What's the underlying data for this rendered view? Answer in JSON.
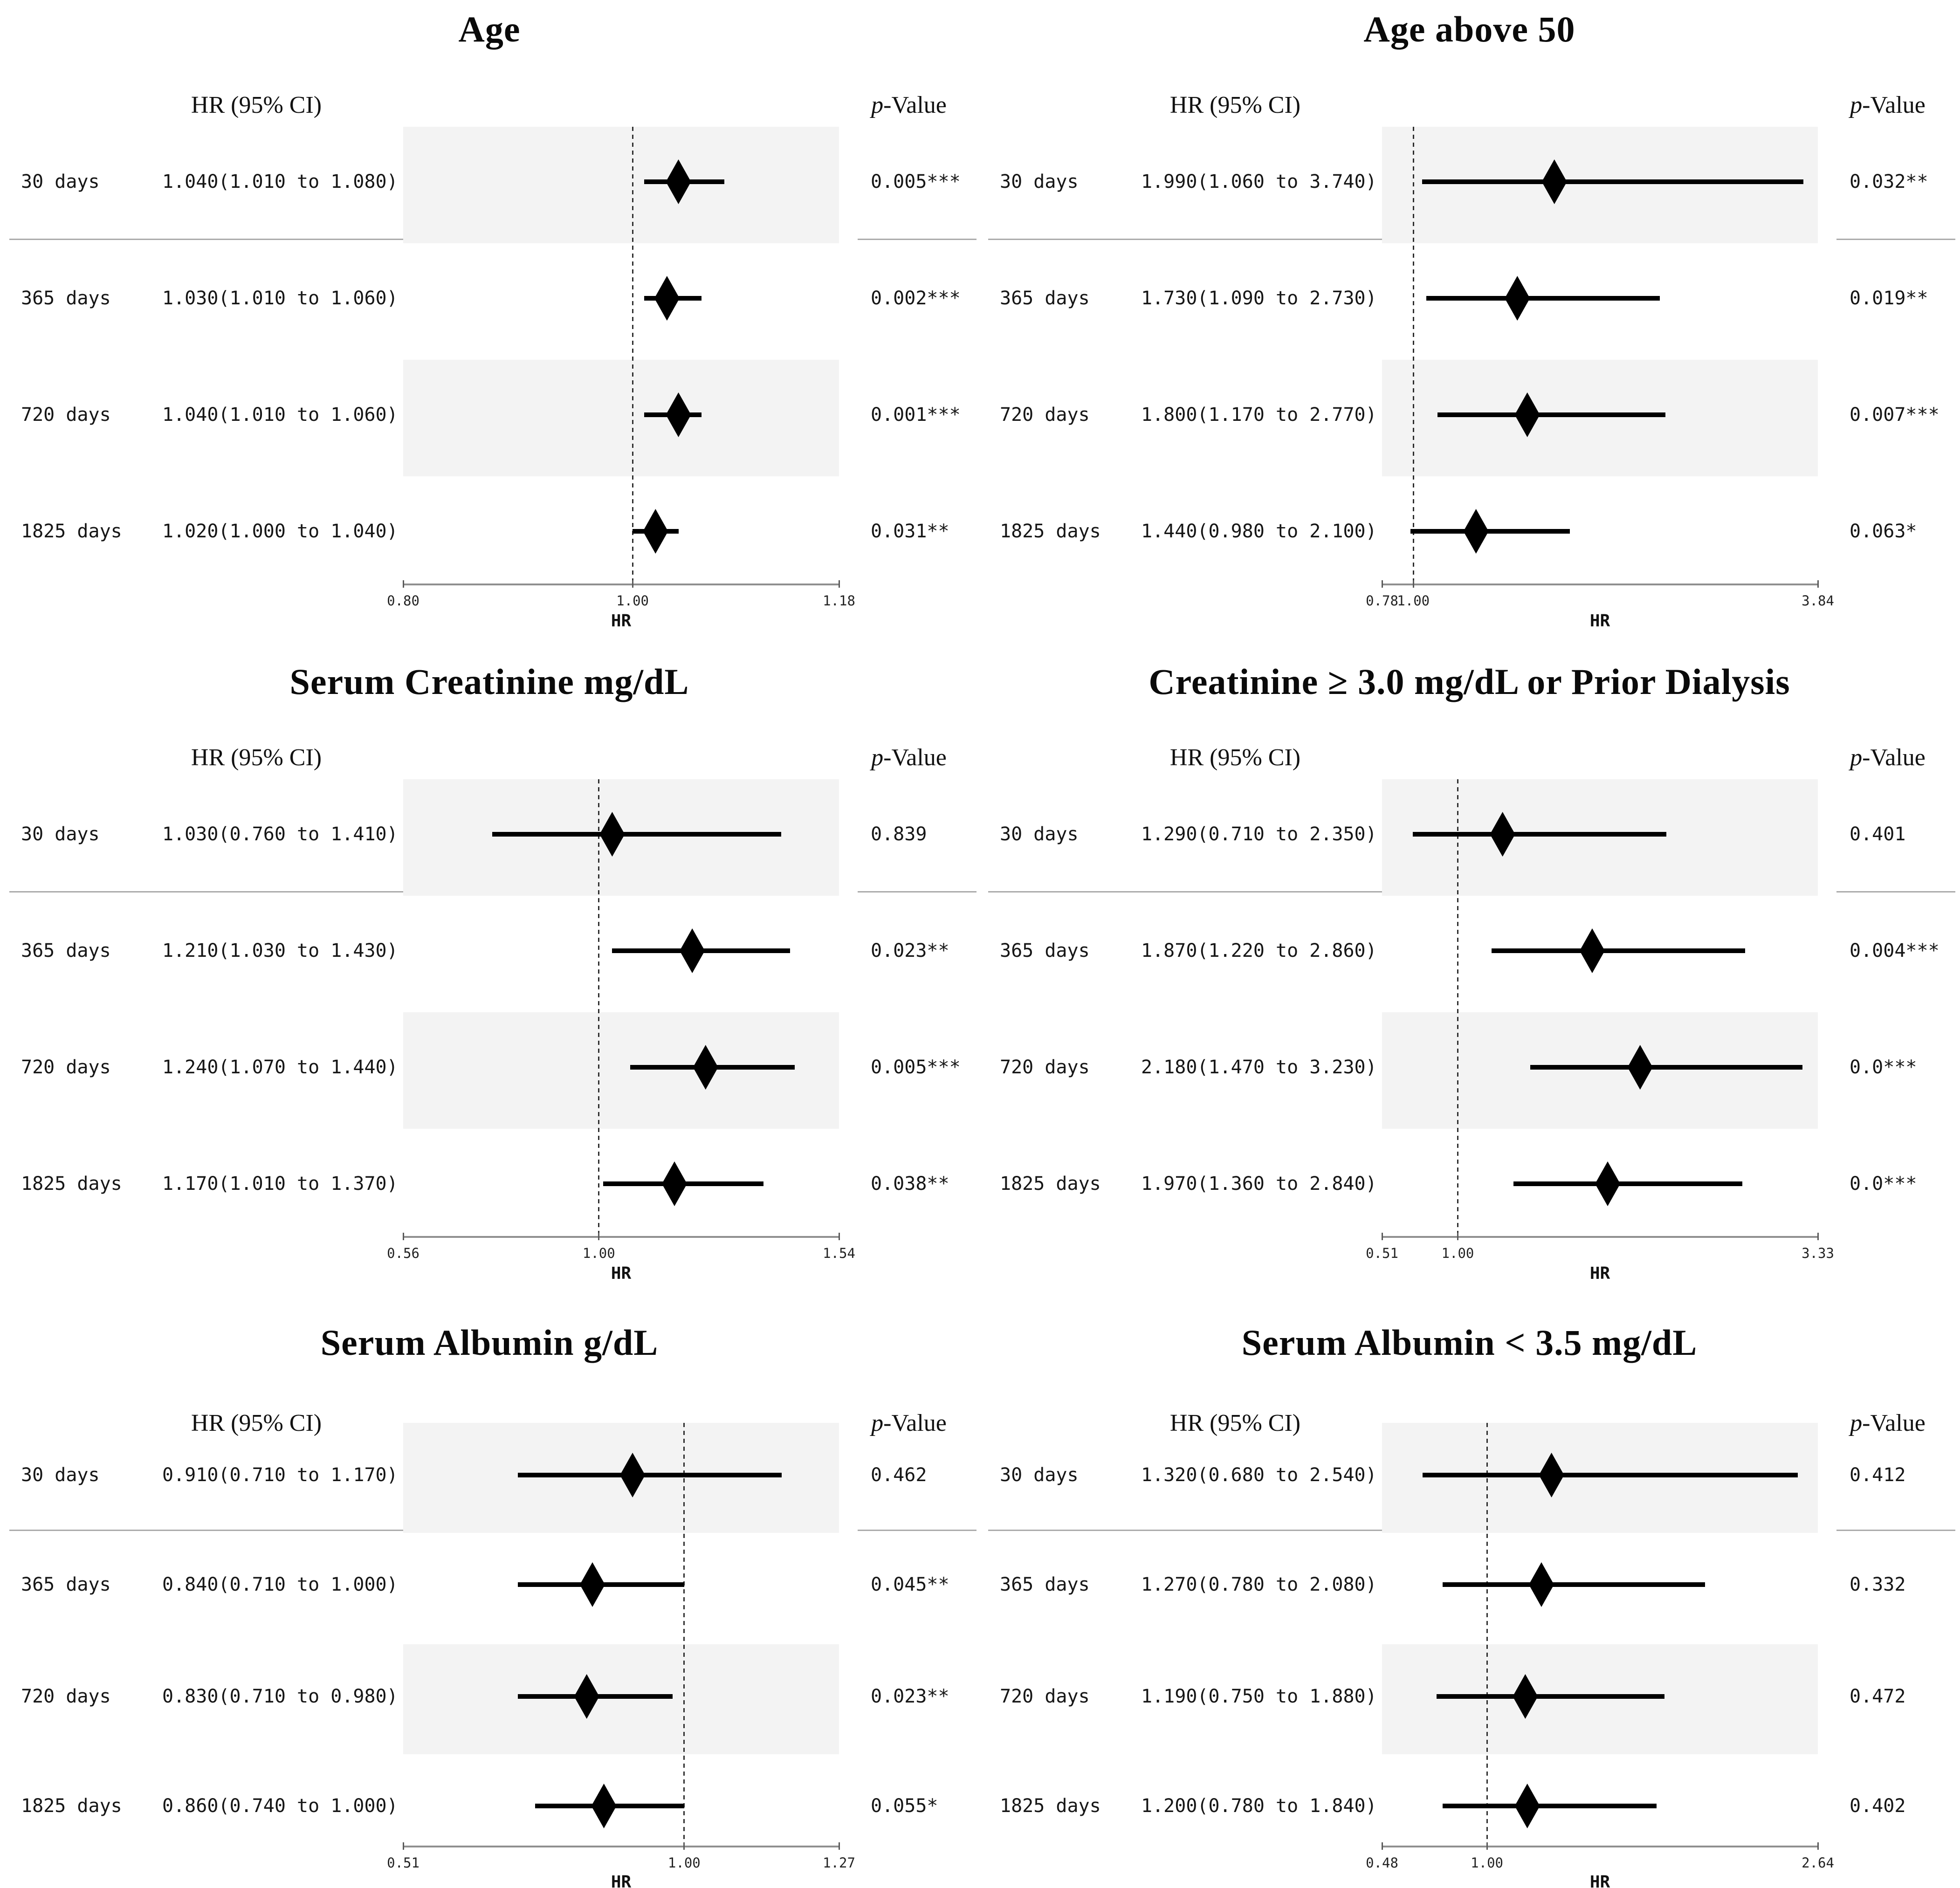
{
  "figure_title": "",
  "axis_label": "HR",
  "colors": {
    "background": "#ffffff",
    "band": "#f3f3f3",
    "divider": "#ababab",
    "axis": "#8f8f8f",
    "marker": "#000000",
    "reference_line": "#2e2e2e",
    "text": "#111111"
  },
  "chart_data": [
    {
      "type": "forest",
      "title": "Age",
      "col_header_left": "HR (95% CI)",
      "col_header_right": "p-Value",
      "xlabel": "HR",
      "xlim": [
        0.8,
        1.18
      ],
      "ticks": [
        {
          "value": 0.8,
          "label": "0.80"
        },
        {
          "value": 1.0,
          "label": "1.00"
        },
        {
          "value": 1.18,
          "label": "1.18"
        }
      ],
      "reference_value": 1.0,
      "rows": [
        {
          "label": "30 days",
          "hr": 1.04,
          "lo": 1.01,
          "hi": 1.08,
          "ci_text": "1.040(1.010 to 1.080)",
          "p_value": "0.005***"
        },
        {
          "label": "365 days",
          "hr": 1.03,
          "lo": 1.01,
          "hi": 1.06,
          "ci_text": "1.030(1.010 to 1.060)",
          "p_value": "0.002***"
        },
        {
          "label": "720 days",
          "hr": 1.04,
          "lo": 1.01,
          "hi": 1.06,
          "ci_text": "1.040(1.010 to 1.060)",
          "p_value": "0.001***"
        },
        {
          "label": "1825 days",
          "hr": 1.02,
          "lo": 1.0,
          "hi": 1.04,
          "ci_text": "1.020(1.000 to 1.040)",
          "p_value": "0.031**"
        }
      ]
    },
    {
      "type": "forest",
      "title": "Age above 50",
      "col_header_left": "HR (95% CI)",
      "col_header_right": "p-Value",
      "xlabel": "HR",
      "xlim": [
        0.78,
        3.84
      ],
      "ticks": [
        {
          "value": 0.78,
          "label": "0.78"
        },
        {
          "value": 1.0,
          "label": "1.00"
        },
        {
          "value": 3.84,
          "label": "3.84"
        }
      ],
      "reference_value": 1.0,
      "rows": [
        {
          "label": "30 days",
          "hr": 1.99,
          "lo": 1.06,
          "hi": 3.74,
          "ci_text": "1.990(1.060 to 3.740)",
          "p_value": "0.032**"
        },
        {
          "label": "365 days",
          "hr": 1.73,
          "lo": 1.09,
          "hi": 2.73,
          "ci_text": "1.730(1.090 to 2.730)",
          "p_value": "0.019**"
        },
        {
          "label": "720 days",
          "hr": 1.8,
          "lo": 1.17,
          "hi": 2.77,
          "ci_text": "1.800(1.170 to 2.770)",
          "p_value": "0.007***"
        },
        {
          "label": "1825 days",
          "hr": 1.44,
          "lo": 0.98,
          "hi": 2.1,
          "ci_text": "1.440(0.980 to 2.100)",
          "p_value": "0.063*"
        }
      ]
    },
    {
      "type": "forest",
      "title": "Serum Creatinine mg/dL",
      "col_header_left": "HR (95% CI)",
      "col_header_right": "p-Value",
      "xlabel": "HR",
      "xlim": [
        0.56,
        1.54
      ],
      "ticks": [
        {
          "value": 0.56,
          "label": "0.56"
        },
        {
          "value": 1.0,
          "label": "1.00"
        },
        {
          "value": 1.54,
          "label": "1.54"
        }
      ],
      "reference_value": 1.0,
      "rows": [
        {
          "label": "30 days",
          "hr": 1.03,
          "lo": 0.76,
          "hi": 1.41,
          "ci_text": "1.030(0.760 to 1.410)",
          "p_value": "0.839"
        },
        {
          "label": "365 days",
          "hr": 1.21,
          "lo": 1.03,
          "hi": 1.43,
          "ci_text": "1.210(1.030 to 1.430)",
          "p_value": "0.023**"
        },
        {
          "label": "720 days",
          "hr": 1.24,
          "lo": 1.07,
          "hi": 1.44,
          "ci_text": "1.240(1.070 to 1.440)",
          "p_value": "0.005***"
        },
        {
          "label": "1825 days",
          "hr": 1.17,
          "lo": 1.01,
          "hi": 1.37,
          "ci_text": "1.170(1.010 to 1.370)",
          "p_value": "0.038**"
        }
      ]
    },
    {
      "type": "forest",
      "title": "Creatinine ≥ 3.0 mg/dL or Prior Dialysis",
      "col_header_left": "HR (95% CI)",
      "col_header_right": "p-Value",
      "xlabel": "HR",
      "xlim": [
        0.51,
        3.33
      ],
      "ticks": [
        {
          "value": 0.51,
          "label": "0.51"
        },
        {
          "value": 1.0,
          "label": "1.00"
        },
        {
          "value": 3.33,
          "label": "3.33"
        }
      ],
      "reference_value": 1.0,
      "rows": [
        {
          "label": "30 days",
          "hr": 1.29,
          "lo": 0.71,
          "hi": 2.35,
          "ci_text": "1.290(0.710 to 2.350)",
          "p_value": "0.401"
        },
        {
          "label": "365 days",
          "hr": 1.87,
          "lo": 1.22,
          "hi": 2.86,
          "ci_text": "1.870(1.220 to 2.860)",
          "p_value": "0.004***"
        },
        {
          "label": "720 days",
          "hr": 2.18,
          "lo": 1.47,
          "hi": 3.23,
          "ci_text": "2.180(1.470 to 3.230)",
          "p_value": "0.0***"
        },
        {
          "label": "1825 days",
          "hr": 1.97,
          "lo": 1.36,
          "hi": 2.84,
          "ci_text": "1.970(1.360 to 2.840)",
          "p_value": "0.0***"
        }
      ]
    },
    {
      "type": "forest",
      "title": "Serum Albumin g/dL",
      "col_header_left": "HR (95% CI)",
      "col_header_right": "p-Value",
      "xlabel": "HR",
      "xlim": [
        0.51,
        1.27
      ],
      "ticks": [
        {
          "value": 0.51,
          "label": "0.51"
        },
        {
          "value": 1.0,
          "label": "1.00"
        },
        {
          "value": 1.27,
          "label": "1.27"
        }
      ],
      "reference_value": 1.0,
      "rows": [
        {
          "label": "30 days",
          "hr": 0.91,
          "lo": 0.71,
          "hi": 1.17,
          "ci_text": "0.910(0.710 to 1.170)",
          "p_value": "0.462"
        },
        {
          "label": "365 days",
          "hr": 0.84,
          "lo": 0.71,
          "hi": 1.0,
          "ci_text": "0.840(0.710 to 1.000)",
          "p_value": "0.045**"
        },
        {
          "label": "720 days",
          "hr": 0.83,
          "lo": 0.71,
          "hi": 0.98,
          "ci_text": "0.830(0.710 to 0.980)",
          "p_value": "0.023**"
        },
        {
          "label": "1825 days",
          "hr": 0.86,
          "lo": 0.74,
          "hi": 1.0,
          "ci_text": "0.860(0.740 to 1.000)",
          "p_value": "0.055*"
        }
      ]
    },
    {
      "type": "forest",
      "title": "Serum Albumin < 3.5 mg/dL",
      "col_header_left": "HR (95% CI)",
      "col_header_right": "p-Value",
      "xlabel": "HR",
      "xlim": [
        0.48,
        2.64
      ],
      "ticks": [
        {
          "value": 0.48,
          "label": "0.48"
        },
        {
          "value": 1.0,
          "label": "1.00"
        },
        {
          "value": 2.64,
          "label": "2.64"
        }
      ],
      "reference_value": 1.0,
      "rows": [
        {
          "label": "30 days",
          "hr": 1.32,
          "lo": 0.68,
          "hi": 2.54,
          "ci_text": "1.320(0.680 to 2.540)",
          "p_value": "0.412"
        },
        {
          "label": "365 days",
          "hr": 1.27,
          "lo": 0.78,
          "hi": 2.08,
          "ci_text": "1.270(0.780 to 2.080)",
          "p_value": "0.332"
        },
        {
          "label": "720 days",
          "hr": 1.19,
          "lo": 0.75,
          "hi": 1.88,
          "ci_text": "1.190(0.750 to 1.880)",
          "p_value": "0.472"
        },
        {
          "label": "1825 days",
          "hr": 1.2,
          "lo": 0.78,
          "hi": 1.84,
          "ci_text": "1.200(0.780 to 1.840)",
          "p_value": "0.402"
        }
      ]
    }
  ]
}
